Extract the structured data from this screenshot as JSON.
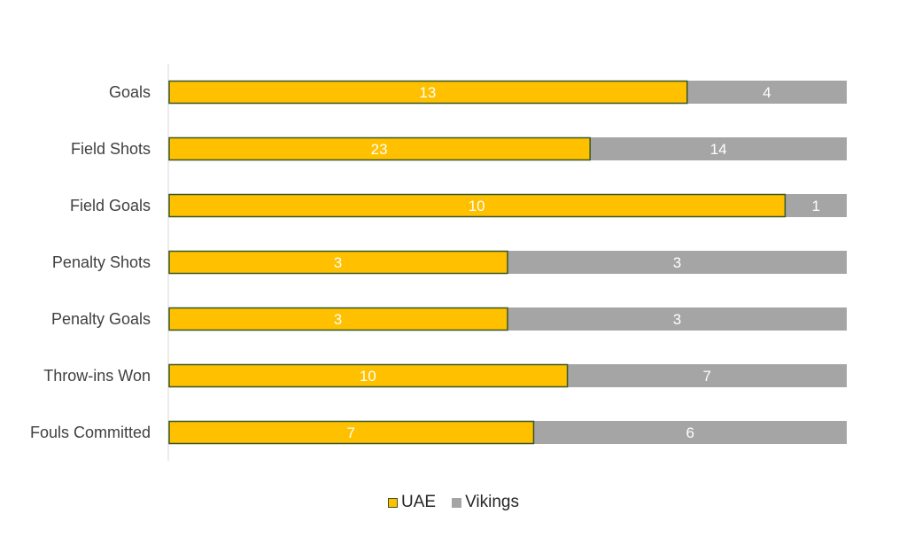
{
  "chart_data": {
    "type": "bar",
    "orientation": "horizontal",
    "stacking": "percent",
    "categories": [
      "Goals",
      "Field Shots",
      "Field Goals",
      "Penalty Shots",
      "Penalty Goals",
      "Throw-ins Won",
      "Fouls Committed"
    ],
    "series": [
      {
        "name": "UAE",
        "values": [
          13,
          23,
          10,
          3,
          3,
          10,
          7
        ],
        "color": "#FFC000",
        "border": "#385723"
      },
      {
        "name": "Vikings",
        "values": [
          4,
          14,
          1,
          3,
          3,
          7,
          6
        ],
        "color": "#A5A5A5"
      }
    ],
    "title": "",
    "xlabel": "",
    "ylabel": "",
    "grid": false,
    "legend_position": "bottom"
  }
}
